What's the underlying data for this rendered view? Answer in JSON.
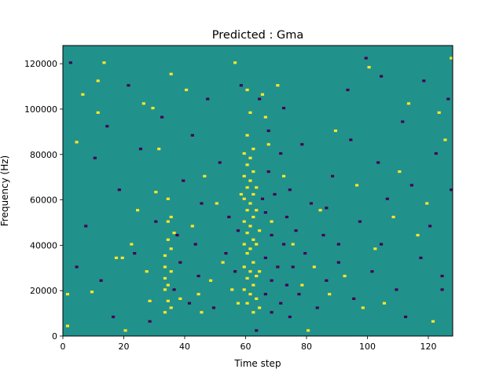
{
  "chart_data": {
    "type": "heatmap",
    "title": "Predicted : Gma",
    "xlabel": "Time step",
    "ylabel": "Frequency (Hz)",
    "xlim": [
      0,
      128
    ],
    "ylim": [
      0,
      128000
    ],
    "xticks": [
      0,
      20,
      40,
      60,
      80,
      100,
      120
    ],
    "yticks": [
      0,
      20000,
      40000,
      60000,
      80000,
      100000,
      120000
    ],
    "xtick_labels": [
      "0",
      "20",
      "40",
      "60",
      "80",
      "100",
      "120"
    ],
    "ytick_labels": [
      "0",
      "20000",
      "40000",
      "60000",
      "80000",
      "100000",
      "120000"
    ],
    "n_time_steps": 128,
    "n_freq_bins": 128,
    "levels": {
      "low": -1,
      "background": 0,
      "high": 1
    },
    "colors": {
      "low": "#440154",
      "background": "#21918c",
      "high": "#fde725"
    },
    "grid": false,
    "legend": "none",
    "cells_high": [
      [
        1,
        4
      ],
      [
        1,
        18
      ],
      [
        4,
        85
      ],
      [
        6,
        106
      ],
      [
        9,
        19
      ],
      [
        11,
        112
      ],
      [
        11,
        98
      ],
      [
        13,
        120
      ],
      [
        17,
        34
      ],
      [
        19,
        34
      ],
      [
        20,
        2
      ],
      [
        22,
        40
      ],
      [
        24,
        55
      ],
      [
        26,
        102
      ],
      [
        27,
        28
      ],
      [
        28,
        15
      ],
      [
        29,
        100
      ],
      [
        30,
        63
      ],
      [
        31,
        82
      ],
      [
        33,
        10
      ],
      [
        33,
        20
      ],
      [
        33,
        25
      ],
      [
        33,
        30
      ],
      [
        33,
        35
      ],
      [
        34,
        15
      ],
      [
        34,
        22
      ],
      [
        34,
        42
      ],
      [
        34,
        50
      ],
      [
        34,
        60
      ],
      [
        35,
        12
      ],
      [
        35,
        28
      ],
      [
        35,
        38
      ],
      [
        35,
        52
      ],
      [
        35,
        115
      ],
      [
        36,
        45
      ],
      [
        38,
        16
      ],
      [
        40,
        108
      ],
      [
        42,
        48
      ],
      [
        44,
        18
      ],
      [
        45,
        10
      ],
      [
        46,
        70
      ],
      [
        48,
        24
      ],
      [
        50,
        58
      ],
      [
        52,
        32
      ],
      [
        55,
        20
      ],
      [
        56,
        120
      ],
      [
        57,
        14
      ],
      [
        58,
        62
      ],
      [
        59,
        20
      ],
      [
        59,
        30
      ],
      [
        59,
        40
      ],
      [
        59,
        50
      ],
      [
        59,
        60
      ],
      [
        59,
        70
      ],
      [
        59,
        80
      ],
      [
        60,
        14
      ],
      [
        60,
        25
      ],
      [
        60,
        36
      ],
      [
        60,
        45
      ],
      [
        60,
        55
      ],
      [
        60,
        65
      ],
      [
        60,
        75
      ],
      [
        60,
        88
      ],
      [
        60,
        108
      ],
      [
        61,
        18
      ],
      [
        61,
        28
      ],
      [
        61,
        38
      ],
      [
        61,
        48
      ],
      [
        61,
        58
      ],
      [
        61,
        68
      ],
      [
        61,
        78
      ],
      [
        61,
        98
      ],
      [
        62,
        10
      ],
      [
        62,
        22
      ],
      [
        62,
        32
      ],
      [
        62,
        42
      ],
      [
        62,
        52
      ],
      [
        62,
        62
      ],
      [
        62,
        72
      ],
      [
        62,
        82
      ],
      [
        63,
        16
      ],
      [
        63,
        26
      ],
      [
        63,
        40
      ],
      [
        63,
        55
      ],
      [
        63,
        65
      ],
      [
        64,
        28
      ],
      [
        64,
        46
      ],
      [
        64,
        12
      ],
      [
        65,
        106
      ],
      [
        66,
        96
      ],
      [
        67,
        84
      ],
      [
        68,
        50
      ],
      [
        70,
        110
      ],
      [
        72,
        70
      ],
      [
        75,
        40
      ],
      [
        78,
        22
      ],
      [
        80,
        2
      ],
      [
        82,
        30
      ],
      [
        84,
        55
      ],
      [
        87,
        18
      ],
      [
        89,
        90
      ],
      [
        92,
        26
      ],
      [
        96,
        66
      ],
      [
        98,
        12
      ],
      [
        100,
        118
      ],
      [
        102,
        38
      ],
      [
        105,
        14
      ],
      [
        108,
        52
      ],
      [
        110,
        72
      ],
      [
        113,
        102
      ],
      [
        116,
        44
      ],
      [
        119,
        58
      ],
      [
        121,
        6
      ],
      [
        123,
        98
      ],
      [
        125,
        86
      ],
      [
        127,
        122
      ]
    ],
    "cells_low": [
      [
        2,
        120
      ],
      [
        4,
        30
      ],
      [
        7,
        48
      ],
      [
        10,
        78
      ],
      [
        12,
        24
      ],
      [
        14,
        92
      ],
      [
        16,
        8
      ],
      [
        18,
        64
      ],
      [
        21,
        110
      ],
      [
        23,
        36
      ],
      [
        25,
        82
      ],
      [
        28,
        6
      ],
      [
        30,
        50
      ],
      [
        32,
        96
      ],
      [
        36,
        20
      ],
      [
        37,
        44
      ],
      [
        38,
        32
      ],
      [
        39,
        68
      ],
      [
        41,
        14
      ],
      [
        42,
        88
      ],
      [
        43,
        40
      ],
      [
        44,
        26
      ],
      [
        45,
        58
      ],
      [
        47,
        104
      ],
      [
        49,
        12
      ],
      [
        51,
        76
      ],
      [
        53,
        36
      ],
      [
        54,
        52
      ],
      [
        56,
        28
      ],
      [
        57,
        46
      ],
      [
        58,
        110
      ],
      [
        63,
        2
      ],
      [
        64,
        104
      ],
      [
        65,
        60
      ],
      [
        66,
        18
      ],
      [
        66,
        34
      ],
      [
        66,
        54
      ],
      [
        67,
        72
      ],
      [
        67,
        90
      ],
      [
        68,
        10
      ],
      [
        68,
        24
      ],
      [
        68,
        44
      ],
      [
        69,
        62
      ],
      [
        70,
        30
      ],
      [
        71,
        14
      ],
      [
        71,
        80
      ],
      [
        72,
        40
      ],
      [
        72,
        100
      ],
      [
        73,
        22
      ],
      [
        73,
        52
      ],
      [
        74,
        64
      ],
      [
        74,
        8
      ],
      [
        75,
        30
      ],
      [
        76,
        46
      ],
      [
        77,
        18
      ],
      [
        78,
        84
      ],
      [
        79,
        36
      ],
      [
        81,
        58
      ],
      [
        83,
        12
      ],
      [
        85,
        44
      ],
      [
        86,
        24
      ],
      [
        88,
        70
      ],
      [
        90,
        32
      ],
      [
        93,
        108
      ],
      [
        95,
        16
      ],
      [
        97,
        50
      ],
      [
        99,
        122
      ],
      [
        101,
        28
      ],
      [
        103,
        76
      ],
      [
        104,
        40
      ],
      [
        106,
        60
      ],
      [
        109,
        20
      ],
      [
        111,
        94
      ],
      [
        112,
        8
      ],
      [
        114,
        66
      ],
      [
        117,
        34
      ],
      [
        118,
        112
      ],
      [
        120,
        48
      ],
      [
        122,
        80
      ],
      [
        124,
        26
      ],
      [
        126,
        104
      ],
      [
        127,
        64
      ],
      [
        86,
        56
      ],
      [
        90,
        40
      ],
      [
        94,
        86
      ],
      [
        104,
        114
      ],
      [
        124,
        20
      ]
    ]
  }
}
